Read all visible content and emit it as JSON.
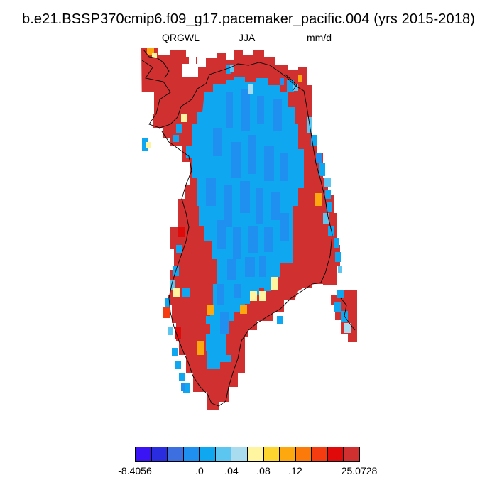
{
  "title": "b.e21.BSSP370cmip6.f09_g17.pacemaker_pacific.004 (yrs 2015-2018)",
  "variable": "QRGWL",
  "season": "JJA",
  "units": "mm/d",
  "colorbar": {
    "colors": [
      "#3a14f5",
      "#2a2ce0",
      "#3d6fe0",
      "#1f8ff0",
      "#0fa8f0",
      "#5cc6f0",
      "#a8dcee",
      "#fff5a0",
      "#fed52e",
      "#fca80e",
      "#fb7a0a",
      "#f53b10",
      "#e00a0a",
      "#d03030"
    ],
    "labels": [
      "-8.4056",
      ".0",
      ".04",
      ".08",
      ".12",
      "25.0728"
    ]
  },
  "map_colors": {
    "red": "#d03030",
    "sky_blue": "#0fa8f0",
    "light_blue": "#5cc6f0",
    "pale_blue": "#a8dcee",
    "mid_blue": "#1f8ff0",
    "yellow": "#fff5a0",
    "gold": "#fed52e",
    "orange": "#fca80e",
    "dark_red": "#e00a0a",
    "orange_red": "#f53b10"
  }
}
